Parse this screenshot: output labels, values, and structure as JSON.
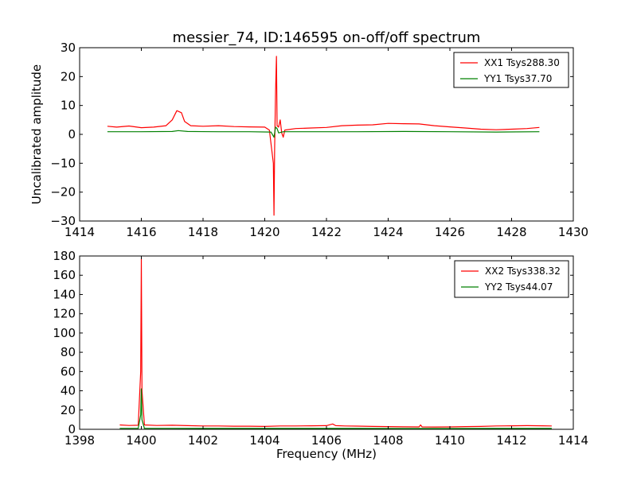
{
  "title": "messier_74, ID:146595 on-off/off spectrum",
  "chart_data": [
    {
      "type": "line",
      "title": "messier_74, ID:146595 on-off/off spectrum",
      "xlabel": "",
      "ylabel": "Uncalibrated amplitude",
      "xlim": [
        1414,
        1430
      ],
      "ylim": [
        -30,
        30
      ],
      "xticks": [
        "1414",
        "1416",
        "1418",
        "1420",
        "1422",
        "1424",
        "1426",
        "1428",
        "1430"
      ],
      "yticks": [
        "30",
        "20",
        "10",
        "0",
        "−10",
        "−20",
        "−30"
      ],
      "legend_position": "top-right",
      "series": [
        {
          "name": "XX1 Tsys288.30",
          "color": "#ff0000",
          "x": [
            1414.9,
            1415.2,
            1415.6,
            1416.0,
            1416.4,
            1416.8,
            1417.0,
            1417.15,
            1417.3,
            1417.4,
            1417.6,
            1418.0,
            1418.5,
            1419.0,
            1419.5,
            1420.0,
            1420.15,
            1420.28,
            1420.3,
            1420.32,
            1420.35,
            1420.38,
            1420.4,
            1420.45,
            1420.5,
            1420.55,
            1420.6,
            1420.65,
            1421.0,
            1421.5,
            1422.0,
            1422.5,
            1423.0,
            1423.5,
            1424.0,
            1424.5,
            1425.0,
            1425.5,
            1426.0,
            1426.5,
            1427.0,
            1427.5,
            1428.0,
            1428.5,
            1428.9
          ],
          "y": [
            2.8,
            2.5,
            2.9,
            2.3,
            2.5,
            3.0,
            5.0,
            8.2,
            7.5,
            4.5,
            3.0,
            2.8,
            3.0,
            2.7,
            2.6,
            2.5,
            1.5,
            -10.0,
            -28.0,
            -5.0,
            15.0,
            27.0,
            3.0,
            2.5,
            5.0,
            0.5,
            -1.0,
            1.5,
            2.0,
            2.2,
            2.4,
            3.0,
            3.2,
            3.3,
            3.8,
            3.7,
            3.6,
            3.0,
            2.6,
            2.2,
            1.8,
            1.6,
            1.8,
            2.0,
            2.4
          ]
        },
        {
          "name": "YY1 Tsys37.70",
          "color": "#008000",
          "x": [
            1414.9,
            1416.0,
            1417.0,
            1417.2,
            1417.5,
            1418.5,
            1419.5,
            1420.2,
            1420.3,
            1420.35,
            1420.4,
            1420.45,
            1420.6,
            1421.5,
            1423.0,
            1424.5,
            1426.0,
            1427.5,
            1428.9
          ],
          "y": [
            0.9,
            0.9,
            1.0,
            1.3,
            1.0,
            0.9,
            0.9,
            0.8,
            -1.0,
            2.5,
            2.0,
            0.5,
            0.9,
            0.9,
            0.9,
            1.0,
            0.9,
            0.8,
            0.9
          ]
        }
      ]
    },
    {
      "type": "line",
      "title": "",
      "xlabel": "Frequency (MHz)",
      "ylabel": "",
      "xlim": [
        1398,
        1414
      ],
      "ylim": [
        0,
        180
      ],
      "xticks": [
        "1398",
        "1400",
        "1402",
        "1404",
        "1406",
        "1408",
        "1410",
        "1412",
        "1414"
      ],
      "yticks": [
        "180",
        "160",
        "140",
        "120",
        "100",
        "80",
        "60",
        "40",
        "20",
        "0"
      ],
      "legend_position": "top-right",
      "series": [
        {
          "name": "XX2 Tsys338.32",
          "color": "#ff0000",
          "x": [
            1399.3,
            1399.6,
            1399.9,
            1399.98,
            1400.0,
            1400.02,
            1400.1,
            1400.5,
            1401.0,
            1401.5,
            1402.0,
            1402.5,
            1403.0,
            1403.5,
            1404.0,
            1404.5,
            1405.0,
            1405.5,
            1406.0,
            1406.2,
            1406.3,
            1406.6,
            1407.0,
            1407.5,
            1408.0,
            1408.5,
            1409.0,
            1409.05,
            1409.1,
            1409.5,
            1410.0,
            1410.5,
            1411.0,
            1411.5,
            1412.0,
            1412.5,
            1413.0,
            1413.3
          ],
          "y": [
            4.5,
            4.0,
            4.2,
            60.0,
            177.0,
            40.0,
            4.5,
            4.0,
            4.2,
            3.8,
            3.5,
            3.5,
            3.2,
            3.2,
            3.0,
            3.5,
            3.5,
            3.6,
            3.8,
            5.5,
            3.8,
            3.5,
            3.3,
            3.0,
            2.8,
            2.6,
            2.5,
            4.5,
            2.5,
            2.4,
            2.5,
            2.8,
            3.0,
            3.5,
            3.6,
            3.8,
            3.6,
            3.5
          ]
        },
        {
          "name": "YY2 Tsys44.07",
          "color": "#008000",
          "x": [
            1399.3,
            1399.9,
            1399.98,
            1400.0,
            1400.02,
            1400.1,
            1401.0,
            1402.5,
            1404.0,
            1405.5,
            1407.0,
            1408.5,
            1410.0,
            1411.5,
            1413.3
          ],
          "y": [
            1.0,
            1.0,
            15.0,
            42.0,
            10.0,
            1.0,
            1.0,
            0.9,
            0.9,
            0.9,
            0.9,
            0.8,
            0.8,
            0.9,
            0.9
          ]
        }
      ]
    }
  ]
}
